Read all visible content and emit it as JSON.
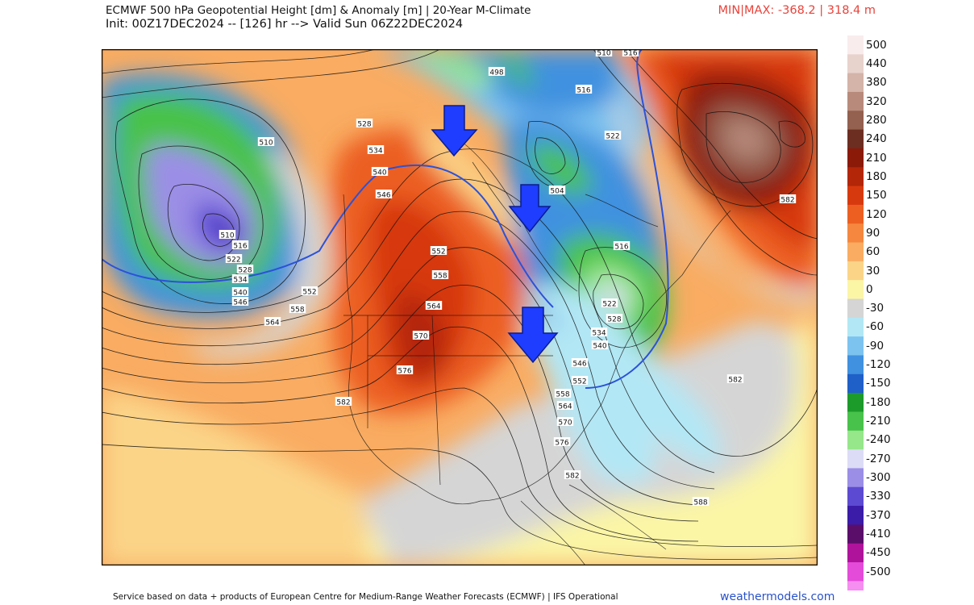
{
  "header": {
    "title_line1": "ECMWF 500 hPa Geopotential Height [dm] & Anomaly [m] | 20-Year M-Climate",
    "title_line2": "Init: 00Z17DEC2024 -- [126] hr --> Valid Sun 06Z22DEC2024",
    "minmax": "MIN|MAX: -368.2 | 318.4 m"
  },
  "legend": {
    "items": [
      {
        "label": "500",
        "color": "#f9ecec"
      },
      {
        "label": "440",
        "color": "#e8d2cc"
      },
      {
        "label": "380",
        "color": "#d4b3a8"
      },
      {
        "label": "320",
        "color": "#b88a7c"
      },
      {
        "label": "280",
        "color": "#94604f"
      },
      {
        "label": "240",
        "color": "#6d2e22"
      },
      {
        "label": "210",
        "color": "#8b1a08"
      },
      {
        "label": "180",
        "color": "#b32608"
      },
      {
        "label": "150",
        "color": "#d7390e"
      },
      {
        "label": "120",
        "color": "#ec5f21"
      },
      {
        "label": "90",
        "color": "#f5873f"
      },
      {
        "label": "60",
        "color": "#f9ac62"
      },
      {
        "label": "30",
        "color": "#fbd488"
      },
      {
        "label": "0",
        "color": "#fbf5a6"
      },
      {
        "label": "-30",
        "color": "#d5d5d5"
      },
      {
        "label": "-60",
        "color": "#b2e7f5"
      },
      {
        "label": "-90",
        "color": "#7cc3ef"
      },
      {
        "label": "-120",
        "color": "#4091e0"
      },
      {
        "label": "-150",
        "color": "#1f5fc8"
      },
      {
        "label": "-180",
        "color": "#1c9b2a"
      },
      {
        "label": "-210",
        "color": "#48c24a"
      },
      {
        "label": "-240",
        "color": "#96e68a"
      },
      {
        "label": "-270",
        "color": "#dcdcf6"
      },
      {
        "label": "-300",
        "color": "#9b8ee6"
      },
      {
        "label": "-330",
        "color": "#5c4ad2"
      },
      {
        "label": "-370",
        "color": "#3a1ca8"
      },
      {
        "label": "-410",
        "color": "#5a0e6a"
      },
      {
        "label": "-450",
        "color": "#b0139b"
      },
      {
        "label": "-500",
        "color": "#e44bd8"
      }
    ],
    "lowest_swatch_color": "#f58ef0"
  },
  "map": {
    "contour_labels": [
      "510",
      "516",
      "498",
      "516",
      "528",
      "534",
      "510",
      "540",
      "546",
      "522",
      "504",
      "516",
      "552",
      "558",
      "564",
      "570",
      "576",
      "582",
      "510",
      "516",
      "522",
      "528",
      "534",
      "540",
      "546",
      "552",
      "558",
      "564",
      "522",
      "528",
      "534",
      "540",
      "546",
      "552",
      "558",
      "564",
      "570",
      "576",
      "582",
      "582",
      "582",
      "588"
    ],
    "arrows": [
      "down-arrow-hudson-bay",
      "down-arrow-ontario",
      "down-arrow-great-lakes"
    ]
  },
  "footer": {
    "text": "Service based on data + products of European Centre for Medium-Range Weather Forecasts (ECMWF) | IFS Operational",
    "brand": "weathermodels.com"
  }
}
